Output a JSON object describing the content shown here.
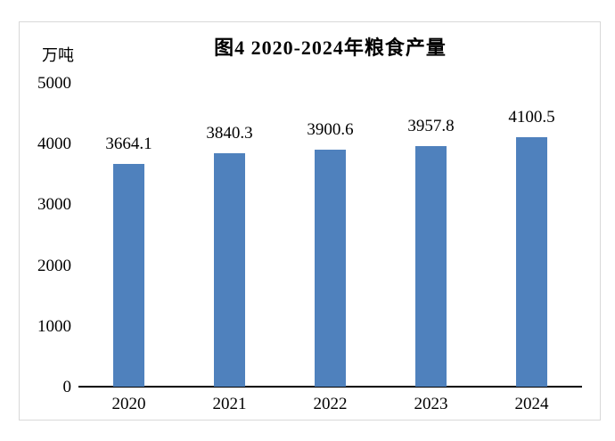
{
  "chart_data": {
    "type": "bar",
    "title": "图4 2020-2024年粮食产量",
    "unit_label": "万吨",
    "categories": [
      "2020",
      "2021",
      "2022",
      "2023",
      "2024"
    ],
    "values": [
      3664.1,
      3840.3,
      3900.6,
      3957.8,
      4100.5
    ],
    "value_labels": [
      "3664.1",
      "3840.3",
      "3900.6",
      "3957.8",
      "4100.5"
    ],
    "ylabel": "万吨",
    "xlabel": "",
    "ylim": [
      0,
      5000
    ],
    "yticks": [
      0,
      1000,
      2000,
      3000,
      4000,
      5000
    ],
    "grid": false,
    "legend": false,
    "bar_color": "#4f81bd",
    "axis_color": "#000000",
    "border_color": "#d8d8d8",
    "text_color": "#000000",
    "background_color": "#ffffff"
  }
}
